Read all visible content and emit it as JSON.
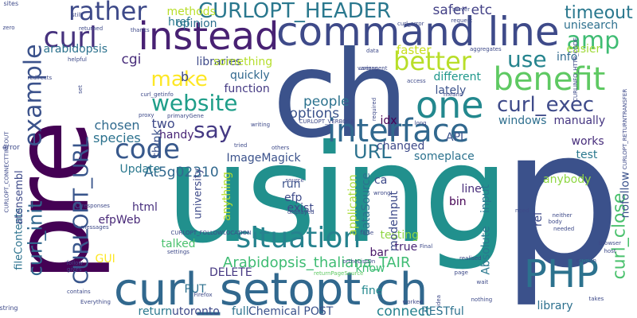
{
  "words": [
    {
      "text": "p",
      "color": "#3b518b",
      "rot": 0
    },
    {
      "text": "using",
      "color": "#21908d",
      "rot": 0
    },
    {
      "text": "pre",
      "color": "#440154",
      "rot": 90
    },
    {
      "text": "ch",
      "color": "#3b528b",
      "rot": 0
    },
    {
      "text": "curl_setopt ch",
      "color": "#31688e",
      "rot": 0
    },
    {
      "text": "command line",
      "color": "#3e4a89",
      "rot": 0
    },
    {
      "text": "instead",
      "color": "#482173",
      "rot": 0
    },
    {
      "text": "PHP",
      "color": "#2c728e",
      "rot": 0
    },
    {
      "text": "one",
      "color": "#23888e",
      "rot": 0
    },
    {
      "text": "benefit",
      "color": "#5ec962",
      "rot": 0
    },
    {
      "text": "interface",
      "color": "#31688e",
      "rot": 0
    },
    {
      "text": "situation",
      "color": "#26828e",
      "rot": 0
    },
    {
      "text": "code",
      "color": "#38598c",
      "rot": 0
    },
    {
      "text": "better",
      "color": "#b8de29",
      "rot": 0
    },
    {
      "text": "example",
      "color": "#3b528b",
      "rot": 90
    },
    {
      "text": "curl",
      "color": "#46327e",
      "rot": 0
    },
    {
      "text": "rather",
      "color": "#3e4a89",
      "rot": 0
    },
    {
      "text": "CURLOPT_HEADER",
      "color": "#2a788e",
      "rot": 0
    },
    {
      "text": "curl_exec",
      "color": "#3e4a89",
      "rot": 0
    },
    {
      "text": "use",
      "color": "#25848e",
      "rot": 0
    },
    {
      "text": "amp",
      "color": "#3fbc73",
      "rot": 0
    },
    {
      "text": "say",
      "color": "#443983",
      "rot": 0
    },
    {
      "text": "website",
      "color": "#1f9e89",
      "rot": 0
    },
    {
      "text": "make",
      "color": "#fde725",
      "rot": 0
    },
    {
      "text": "timeout",
      "color": "#2a788e",
      "rot": 0
    },
    {
      "text": "CURLOPT_URL",
      "color": "#39568c",
      "rot": 90
    },
    {
      "text": "curl_init",
      "color": "#31688e",
      "rot": 90
    },
    {
      "text": "curl_close",
      "color": "#4ac16d",
      "rot": 90
    },
    {
      "text": "URL",
      "color": "#2c728e",
      "rot": 0
    },
    {
      "text": "safer etc",
      "color": "#424086",
      "rot": 0
    },
    {
      "text": "unisearch",
      "color": "#2d708e",
      "rot": 0
    },
    {
      "text": "Arabidopsis_thaliana_TAIR",
      "color": "#3fbc73",
      "rot": 0
    },
    {
      "text": "ImageMagick",
      "color": "#3b528b",
      "rot": 0
    },
    {
      "text": "At5g02310",
      "color": "#31688e",
      "rot": 0
    },
    {
      "text": "easier",
      "color": "#a0da39",
      "rot": 0
    },
    {
      "text": "faster",
      "color": "#c8e020",
      "rot": 0
    },
    {
      "text": "opinion",
      "color": "#2d708e",
      "rot": 0
    },
    {
      "text": "libraries",
      "color": "#3e4a89",
      "rot": 0
    },
    {
      "text": "something",
      "color": "#b5de2b",
      "rot": 0
    },
    {
      "text": "function",
      "color": "#443983",
      "rot": 0
    },
    {
      "text": "people",
      "color": "#2c728e",
      "rot": 0
    },
    {
      "text": "options",
      "color": "#3b528b",
      "rot": 0
    },
    {
      "text": "lately",
      "color": "#3b528b",
      "rot": 0
    },
    {
      "text": "chosen",
      "color": "#306a8e",
      "rot": 0
    },
    {
      "text": "two",
      "color": "#3e4989",
      "rot": 0
    },
    {
      "text": "handy",
      "color": "#482475",
      "rot": 0
    },
    {
      "text": "species",
      "color": "#2c728e",
      "rot": 0
    },
    {
      "text": "cgi",
      "color": "#472c7a",
      "rot": 0
    },
    {
      "text": "b",
      "color": "#3e4a89",
      "rot": 0
    },
    {
      "text": "quickly",
      "color": "#31688e",
      "rot": 0
    },
    {
      "text": "different",
      "color": "#1f988b",
      "rot": 0
    },
    {
      "text": "windows",
      "color": "#2e6f8e",
      "rot": 0
    },
    {
      "text": "manually",
      "color": "#453581",
      "rot": 0
    },
    {
      "text": "API",
      "color": "#3b528b",
      "rot": 0
    },
    {
      "text": "idx",
      "color": "#440154",
      "rot": 0
    },
    {
      "text": "someplace",
      "color": "#2c728e",
      "rot": 0
    },
    {
      "text": "run",
      "color": "#3b528b",
      "rot": 0
    },
    {
      "text": "efp",
      "color": "#3e4a89",
      "rot": 0
    },
    {
      "text": "exist",
      "color": "#3e4a89",
      "rot": 0
    },
    {
      "text": "html",
      "color": "#472f7d",
      "rot": 0
    },
    {
      "text": "efpWeb",
      "color": "#482878",
      "rot": 0
    },
    {
      "text": "talked",
      "color": "#4ac16d",
      "rot": 0
    },
    {
      "text": "bar",
      "color": "#481668",
      "rot": 0
    },
    {
      "text": "testing",
      "color": "#8fd744",
      "rot": 0
    },
    {
      "text": "true",
      "color": "#482475",
      "rot": 0
    },
    {
      "text": "know",
      "color": "#3dbc74",
      "rot": 0
    },
    {
      "text": "fine",
      "color": "#23888e",
      "rot": 0
    },
    {
      "text": "connect",
      "color": "#26828e",
      "rot": 0
    },
    {
      "text": "library",
      "color": "#2d708e",
      "rot": 0
    },
    {
      "text": "return",
      "color": "#2a788e",
      "rot": 0
    },
    {
      "text": "utoronto",
      "color": "#3e4a89",
      "rot": 0
    },
    {
      "text": "full",
      "color": "#2c728e",
      "rot": 0
    },
    {
      "text": "Chemical POST",
      "color": "#3b528b",
      "rot": 0
    },
    {
      "text": "RESTful",
      "color": "#2c728e",
      "rot": 0
    },
    {
      "text": "PUT",
      "color": "#2d708e",
      "rot": 0
    },
    {
      "text": "DELETE",
      "color": "#453781",
      "rot": 0
    },
    {
      "text": "GUI",
      "color": "#fde725",
      "rot": 0
    },
    {
      "text": "line",
      "color": "#472c7a",
      "rot": 0
    },
    {
      "text": "bin",
      "color": "#440154",
      "rot": 0
    },
    {
      "text": "test",
      "color": "#2a788e",
      "rot": 0
    },
    {
      "text": "ca",
      "color": "#3e4a89",
      "rot": 0
    },
    {
      "text": "anybody",
      "color": "#8fd744",
      "rot": 0
    },
    {
      "text": "href",
      "color": "#29798e",
      "rot": 0
    },
    {
      "text": "methods",
      "color": "#b8de29",
      "rot": 0
    },
    {
      "text": "info",
      "color": "#306a8e",
      "rot": 0
    },
    {
      "text": "works",
      "color": "#472d7b",
      "rot": 0
    },
    {
      "text": "changed",
      "color": "#3e4a89",
      "rot": 0
    },
    {
      "text": "Update",
      "color": "#2a788e",
      "rot": 0
    },
    {
      "text": "application",
      "color": "#a8db34",
      "rot": 90
    },
    {
      "text": "dataSource",
      "color": "#2c728e",
      "rot": 90
    },
    {
      "text": "modeInput",
      "color": "#3e4a89",
      "rot": 90
    },
    {
      "text": "input",
      "color": "#2a788e",
      "rot": 90
    },
    {
      "text": "fileContents",
      "color": "#2c728e",
      "rot": 90
    },
    {
      "text": "atensembl",
      "color": "#3e4a89",
      "rot": 90
    },
    {
      "text": "think",
      "color": "#3b528b",
      "rot": 90
    },
    {
      "text": "anything",
      "color": "#b5de2b",
      "rot": 90
    },
    {
      "text": "university",
      "color": "#3e4a89",
      "rot": 90
    },
    {
      "text": "Absolute",
      "color": "#2a788e",
      "rot": 90
    },
    {
      "text": "rel",
      "color": "#3e4a89",
      "rot": 90
    },
    {
      "text": "nofollow",
      "color": "#3b528b",
      "rot": 90
    },
    {
      "text": "arabidopsis",
      "color": "#2c728e",
      "rot": 0
    },
    {
      "text": "q",
      "color": "#3e4a89",
      "rot": 0
    },
    {
      "text": "sites",
      "color": "#3e4a89",
      "rot": 0
    },
    {
      "text": "zero",
      "color": "#3e4a89",
      "rot": 0
    },
    {
      "text": "helpful",
      "color": "#3e4a89",
      "rot": 0
    },
    {
      "text": "error",
      "color": "#3e4a89",
      "rot": 0
    },
    {
      "text": "redirects",
      "color": "#3e4a89",
      "rot": 0
    },
    {
      "text": "curl_getinfo",
      "color": "#3e4a89",
      "rot": 0
    },
    {
      "text": "primaryGene",
      "color": "#3e4a89",
      "rot": 0
    },
    {
      "text": "CURLOPT_VERBOSE",
      "color": "#3e4a89",
      "rot": 0
    },
    {
      "text": "CURLOPT_FOLLOWLOCATION",
      "color": "#3e4a89",
      "rot": 0
    },
    {
      "text": "returnPageSource",
      "color": "#5ec962",
      "rot": 0
    },
    {
      "text": "orthoListOn",
      "color": "#3e4a89",
      "rot": 0
    },
    {
      "text": "string",
      "color": "#3e4a89",
      "rot": 0
    },
    {
      "text": "Everything",
      "color": "#3e4a89",
      "rot": 0
    },
    {
      "text": "settings",
      "color": "#3e4a89",
      "rot": 0
    },
    {
      "text": "Firefox",
      "color": "#3e4a89",
      "rot": 0
    },
    {
      "text": "Final",
      "color": "#3e4a89",
      "rot": 0
    },
    {
      "text": "realised",
      "color": "#3e4a89",
      "rot": 0
    },
    {
      "text": "displayed",
      "color": "#3e4a89",
      "rot": 0
    },
    {
      "text": "wrong",
      "color": "#3e4a89",
      "rot": 0
    },
    {
      "text": "responses",
      "color": "#3e4a89",
      "rot": 0
    },
    {
      "text": "messages",
      "color": "#3e4a89",
      "rot": 0
    },
    {
      "text": "follow",
      "color": "#3e4a89",
      "rot": 0
    },
    {
      "text": "gives",
      "color": "#3e4a89",
      "rot": 0
    },
    {
      "text": "contains",
      "color": "#3e4a89",
      "rot": 0
    },
    {
      "text": "server",
      "color": "#3e4a89",
      "rot": 0
    },
    {
      "text": "curl_error",
      "color": "#3e4a89",
      "rot": 0
    },
    {
      "text": "request",
      "color": "#3e4a89",
      "rot": 0
    },
    {
      "text": "aggregates",
      "color": "#3e4a89",
      "rot": 0
    },
    {
      "text": "useragent",
      "color": "#3e4a89",
      "rot": 0
    },
    {
      "text": "data",
      "color": "#3e4a89",
      "rot": 0
    },
    {
      "text": "various",
      "color": "#3e4a89",
      "rot": 0
    },
    {
      "text": "access",
      "color": "#3e4a89",
      "rot": 0
    },
    {
      "text": "means",
      "color": "#3e4a89",
      "rot": 0
    },
    {
      "text": "long",
      "color": "#3e4a89",
      "rot": 0
    },
    {
      "text": "source",
      "color": "#3e4a89",
      "rot": 0
    },
    {
      "text": "others",
      "color": "#3e4a89",
      "rot": 0
    },
    {
      "text": "tried",
      "color": "#3e4a89",
      "rot": 0
    },
    {
      "text": "writing",
      "color": "#3e4a89",
      "rot": 0
    },
    {
      "text": "proxy",
      "color": "#3e4a89",
      "rot": 0
    },
    {
      "text": "thanks",
      "color": "#3e4a89",
      "rot": 0
    },
    {
      "text": "returned",
      "color": "#3e4a89",
      "rot": 0
    },
    {
      "text": "still",
      "color": "#3e4a89",
      "rot": 0
    },
    {
      "text": "need",
      "color": "#3e4a89",
      "rot": 0
    },
    {
      "text": "needed",
      "color": "#3e4a89",
      "rot": 0
    },
    {
      "text": "neither",
      "color": "#3e4a89",
      "rot": 0
    },
    {
      "text": "body",
      "color": "#3e4a89",
      "rot": 0
    },
    {
      "text": "explain",
      "color": "#3e4a89",
      "rot": 0
    },
    {
      "text": "browser",
      "color": "#3e4a89",
      "rot": 0
    },
    {
      "text": "host",
      "color": "#3e4a89",
      "rot": 0
    },
    {
      "text": "false",
      "color": "#3e4a89",
      "rot": 0
    },
    {
      "text": "page",
      "color": "#3e4a89",
      "rot": 0
    },
    {
      "text": "wait",
      "color": "#3e4a89",
      "rot": 0
    },
    {
      "text": "worked",
      "color": "#3e4a89",
      "rot": 0
    },
    {
      "text": "idea",
      "color": "#3e4a89",
      "rot": 90
    },
    {
      "text": "nothing",
      "color": "#3e4a89",
      "rot": 0
    },
    {
      "text": "takes",
      "color": "#3e4a89",
      "rot": 0
    },
    {
      "text": "required",
      "color": "#3e4a89",
      "rot": 90
    },
    {
      "text": "set",
      "color": "#3e4a89",
      "rot": 90
    },
    {
      "text": "CURLOPT_CONNECTTIMEOUT",
      "color": "#3e4a89",
      "rot": 90
    },
    {
      "text": "CURLINFO_HTTP_CODE",
      "color": "#3e4a89",
      "rot": 90
    },
    {
      "text": "CURLOPT_RETURNTRANSFER",
      "color": "#3e4a89",
      "rot": 90
    }
  ]
}
